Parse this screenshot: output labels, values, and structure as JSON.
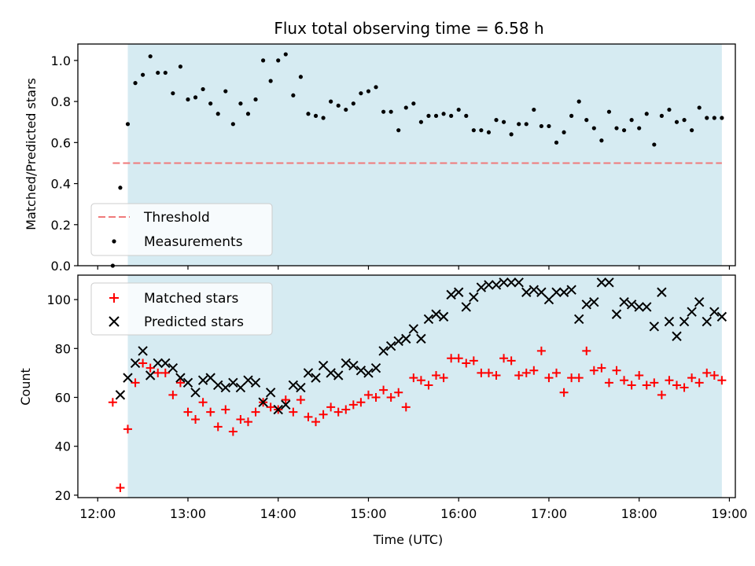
{
  "title": "Flux total observing time = 6.58 h",
  "colors": {
    "shade": "#add8e6",
    "threshold": "#f07a7a",
    "measurement": "#000000",
    "matched": "#ff0000",
    "predicted": "#000000"
  },
  "chart_data": [
    {
      "type": "scatter",
      "panel": "top",
      "title": "Flux total observing time = 6.58 h",
      "xlabel": "",
      "ylabel": "Matched/Predicted stars",
      "xlim": [
        "12:00",
        "19:00"
      ],
      "ylim": [
        0,
        1.08
      ],
      "yticks": [
        "0.0",
        "0.2",
        "0.4",
        "0.6",
        "0.8",
        "1.0"
      ],
      "shaded_span": [
        "12:20",
        "18:55"
      ],
      "legend": {
        "placement": "lower-left",
        "entries": [
          "Threshold",
          "Measurements"
        ]
      },
      "threshold": {
        "name": "Threshold",
        "y": 0.5,
        "x_range": [
          "12:10",
          "18:55"
        ],
        "style": "dashed"
      },
      "series": [
        {
          "name": "Measurements",
          "marker": "dot",
          "x": [
            "12:10",
            "12:15",
            "12:20",
            "12:25",
            "12:30",
            "12:35",
            "12:40",
            "12:45",
            "12:50",
            "12:55",
            "13:00",
            "13:05",
            "13:10",
            "13:15",
            "13:20",
            "13:25",
            "13:30",
            "13:35",
            "13:40",
            "13:45",
            "13:50",
            "13:55",
            "14:00",
            "14:05",
            "14:10",
            "14:15",
            "14:20",
            "14:25",
            "14:30",
            "14:35",
            "14:40",
            "14:45",
            "14:50",
            "14:55",
            "15:00",
            "15:05",
            "15:10",
            "15:15",
            "15:20",
            "15:25",
            "15:30",
            "15:35",
            "15:40",
            "15:45",
            "15:50",
            "15:55",
            "16:00",
            "16:05",
            "16:10",
            "16:15",
            "16:20",
            "16:25",
            "16:30",
            "16:35",
            "16:40",
            "16:45",
            "16:50",
            "16:55",
            "17:00",
            "17:05",
            "17:10",
            "17:15",
            "17:20",
            "17:25",
            "17:30",
            "17:35",
            "17:40",
            "17:45",
            "17:50",
            "17:55",
            "18:00",
            "18:05",
            "18:10",
            "18:15",
            "18:20",
            "18:25",
            "18:30",
            "18:35",
            "18:40",
            "18:45",
            "18:50",
            "18:55"
          ],
          "y": [
            0.0,
            0.38,
            0.69,
            0.89,
            0.93,
            1.02,
            0.94,
            0.94,
            0.84,
            0.97,
            0.81,
            0.82,
            0.86,
            0.79,
            0.74,
            0.85,
            0.69,
            0.79,
            0.74,
            0.81,
            1.0,
            0.9,
            1.0,
            1.03,
            0.83,
            0.92,
            0.74,
            0.73,
            0.72,
            0.8,
            0.78,
            0.76,
            0.79,
            0.84,
            0.85,
            0.87,
            0.75,
            0.75,
            0.66,
            0.77,
            0.79,
            0.7,
            0.73,
            0.73,
            0.74,
            0.73,
            0.76,
            0.73,
            0.66,
            0.66,
            0.65,
            0.71,
            0.7,
            0.64,
            0.69,
            0.69,
            0.76,
            0.68,
            0.68,
            0.6,
            0.65,
            0.73,
            0.8,
            0.71,
            0.67,
            0.61,
            0.75,
            0.67,
            0.66,
            0.71,
            0.67,
            0.74,
            0.59,
            0.73,
            0.76,
            0.7,
            0.71,
            0.66,
            0.77,
            0.72,
            0.72,
            0.72
          ]
        }
      ]
    },
    {
      "type": "scatter",
      "panel": "bottom",
      "xlabel": "Time (UTC)",
      "ylabel": "Count",
      "xlim": [
        "12:00",
        "19:00"
      ],
      "ylim": [
        19,
        110
      ],
      "xticks": [
        "12:00",
        "13:00",
        "14:00",
        "15:00",
        "16:00",
        "17:00",
        "18:00",
        "19:00"
      ],
      "yticks": [
        "20",
        "40",
        "60",
        "80",
        "100"
      ],
      "shaded_span": [
        "12:20",
        "18:55"
      ],
      "legend": {
        "placement": "upper-left",
        "entries": [
          "Matched stars",
          "Predicted stars"
        ]
      },
      "x": [
        "12:10",
        "12:15",
        "12:20",
        "12:25",
        "12:30",
        "12:35",
        "12:40",
        "12:45",
        "12:50",
        "12:55",
        "13:00",
        "13:05",
        "13:10",
        "13:15",
        "13:20",
        "13:25",
        "13:30",
        "13:35",
        "13:40",
        "13:45",
        "13:50",
        "13:55",
        "14:00",
        "14:05",
        "14:10",
        "14:15",
        "14:20",
        "14:25",
        "14:30",
        "14:35",
        "14:40",
        "14:45",
        "14:50",
        "14:55",
        "15:00",
        "15:05",
        "15:10",
        "15:15",
        "15:20",
        "15:25",
        "15:30",
        "15:35",
        "15:40",
        "15:45",
        "15:50",
        "15:55",
        "16:00",
        "16:05",
        "16:10",
        "16:15",
        "16:20",
        "16:25",
        "16:30",
        "16:35",
        "16:40",
        "16:45",
        "16:50",
        "16:55",
        "17:00",
        "17:05",
        "17:10",
        "17:15",
        "17:20",
        "17:25",
        "17:30",
        "17:35",
        "17:40",
        "17:45",
        "17:50",
        "17:55",
        "18:00",
        "18:05",
        "18:10",
        "18:15",
        "18:20",
        "18:25",
        "18:30",
        "18:35",
        "18:40",
        "18:45",
        "18:50",
        "18:55"
      ],
      "series": [
        {
          "name": "Matched stars",
          "marker": "plus",
          "y": [
            58,
            23,
            47,
            66,
            74,
            72,
            70,
            70,
            61,
            66,
            54,
            51,
            58,
            54,
            48,
            55,
            46,
            51,
            50,
            54,
            58,
            56,
            55,
            59,
            54,
            59,
            52,
            50,
            53,
            56,
            54,
            55,
            57,
            58,
            61,
            60,
            63,
            60,
            62,
            56,
            68,
            67,
            65,
            69,
            68,
            76,
            76,
            74,
            75,
            70,
            70,
            69,
            76,
            75,
            69,
            70,
            71,
            79,
            68,
            70,
            62,
            68,
            68,
            79,
            71,
            72,
            66,
            71,
            67,
            65,
            69,
            65,
            66,
            61,
            67,
            65,
            64,
            68,
            66,
            70,
            69,
            67
          ]
        },
        {
          "name": "Predicted stars",
          "marker": "x",
          "y": [
            null,
            61,
            68,
            74,
            79,
            69,
            74,
            74,
            72,
            68,
            66,
            62,
            67,
            68,
            65,
            64,
            66,
            64,
            67,
            66,
            58,
            62,
            55,
            57,
            65,
            64,
            70,
            68,
            73,
            70,
            69,
            74,
            73,
            71,
            70,
            72,
            79,
            81,
            83,
            84,
            88,
            84,
            92,
            94,
            93,
            102,
            103,
            97,
            101,
            105,
            106,
            106,
            107,
            107,
            107,
            103,
            104,
            103,
            100,
            103,
            103,
            104,
            92,
            98,
            99,
            107,
            107,
            94,
            99,
            98,
            97,
            97,
            89,
            103,
            91,
            85,
            91,
            95,
            99,
            91,
            95,
            93
          ]
        }
      ]
    }
  ]
}
